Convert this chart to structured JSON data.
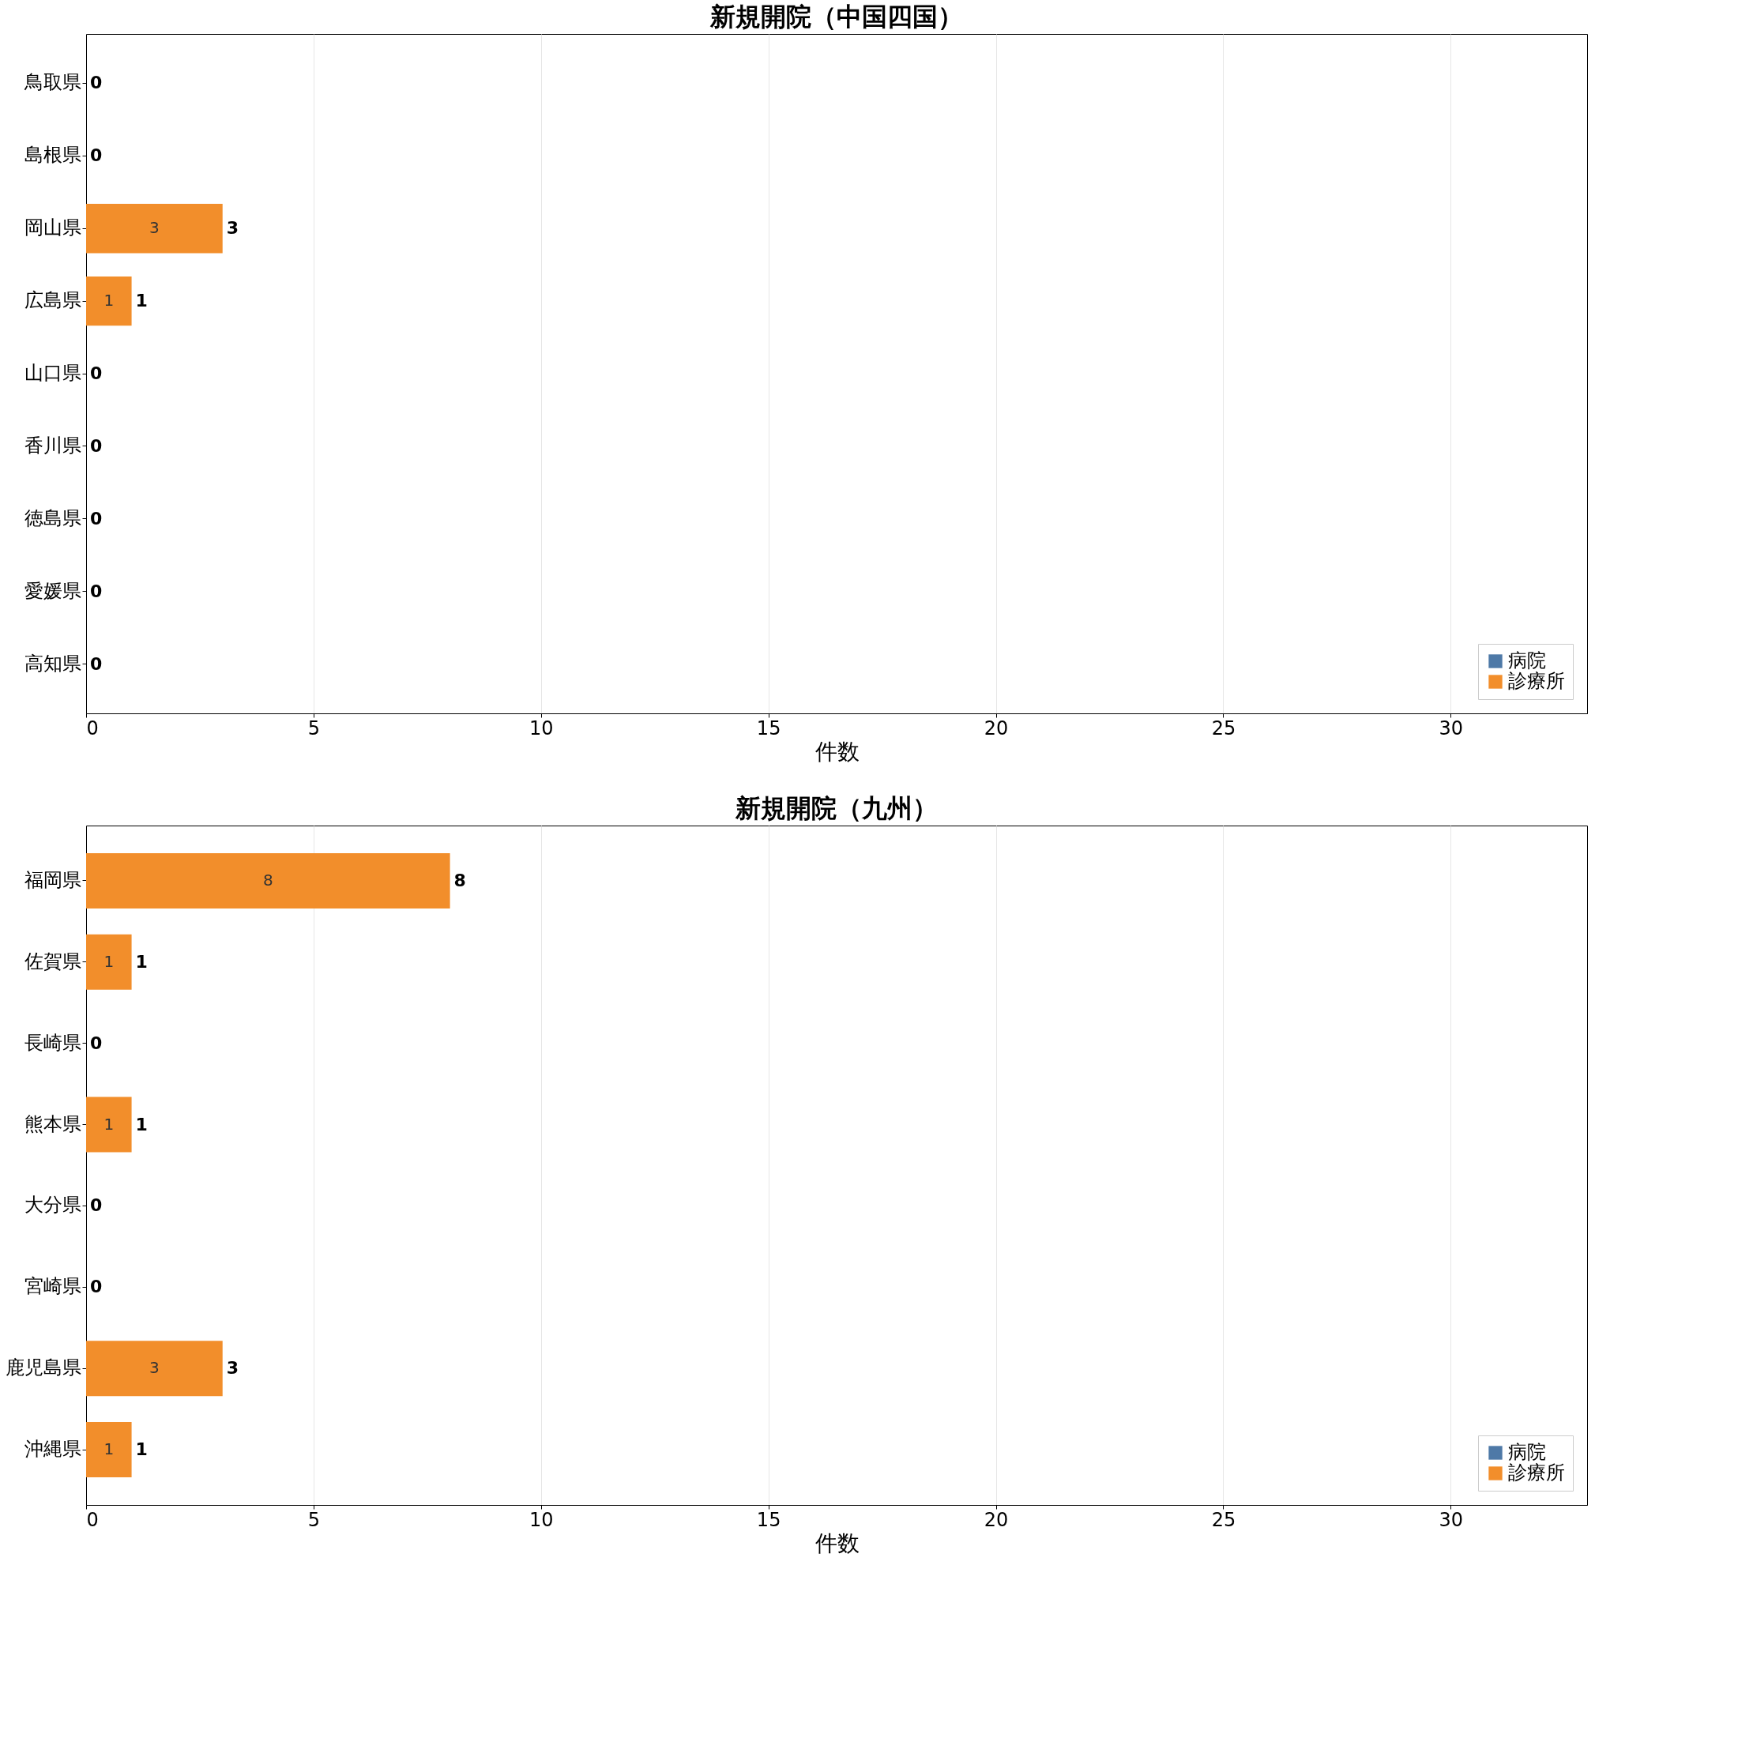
{
  "chart_data": [
    {
      "type": "bar",
      "orientation": "horizontal",
      "stacked": true,
      "title": "新規開院（中国四国）",
      "xlabel": "件数",
      "categories": [
        "鳥取県",
        "島根県",
        "岡山県",
        "広島県",
        "山口県",
        "香川県",
        "徳島県",
        "愛媛県",
        "高知県"
      ],
      "series": [
        {
          "name": "病院",
          "color": "#4e79a7",
          "values": [
            0,
            0,
            0,
            0,
            0,
            0,
            0,
            0,
            0
          ],
          "value_labels": [
            null,
            null,
            null,
            null,
            null,
            null,
            null,
            null,
            null
          ]
        },
        {
          "name": "診療所",
          "color": "#f28e2b",
          "values": [
            0,
            0,
            3,
            1,
            0,
            0,
            0,
            0,
            0
          ],
          "value_labels": [
            null,
            null,
            "3",
            "1",
            null,
            null,
            null,
            null,
            null
          ]
        }
      ],
      "totals": [
        "0",
        "0",
        "3",
        "1",
        "0",
        "0",
        "0",
        "0",
        "0"
      ],
      "xlim": [
        0,
        33
      ],
      "xticks": [
        0,
        5,
        10,
        15,
        20,
        25,
        30
      ],
      "grid": "x",
      "legend": "bottom right"
    },
    {
      "type": "bar",
      "orientation": "horizontal",
      "stacked": true,
      "title": "新規開院（九州）",
      "xlabel": "件数",
      "categories": [
        "福岡県",
        "佐賀県",
        "長崎県",
        "熊本県",
        "大分県",
        "宮崎県",
        "鹿児島県",
        "沖縄県"
      ],
      "series": [
        {
          "name": "病院",
          "color": "#4e79a7",
          "values": [
            0,
            0,
            0,
            0,
            0,
            0,
            0,
            0
          ],
          "value_labels": [
            null,
            null,
            null,
            null,
            null,
            null,
            null,
            null
          ]
        },
        {
          "name": "診療所",
          "color": "#f28e2b",
          "values": [
            8,
            1,
            0,
            1,
            0,
            0,
            3,
            1
          ],
          "value_labels": [
            "8",
            "1",
            null,
            "1",
            null,
            null,
            "3",
            "1"
          ]
        }
      ],
      "totals": [
        "8",
        "1",
        "0",
        "1",
        "0",
        "0",
        "3",
        "1"
      ],
      "xlim": [
        0,
        33
      ],
      "xticks": [
        0,
        5,
        10,
        15,
        20,
        25,
        30
      ],
      "grid": "x",
      "legend": "bottom right"
    }
  ]
}
